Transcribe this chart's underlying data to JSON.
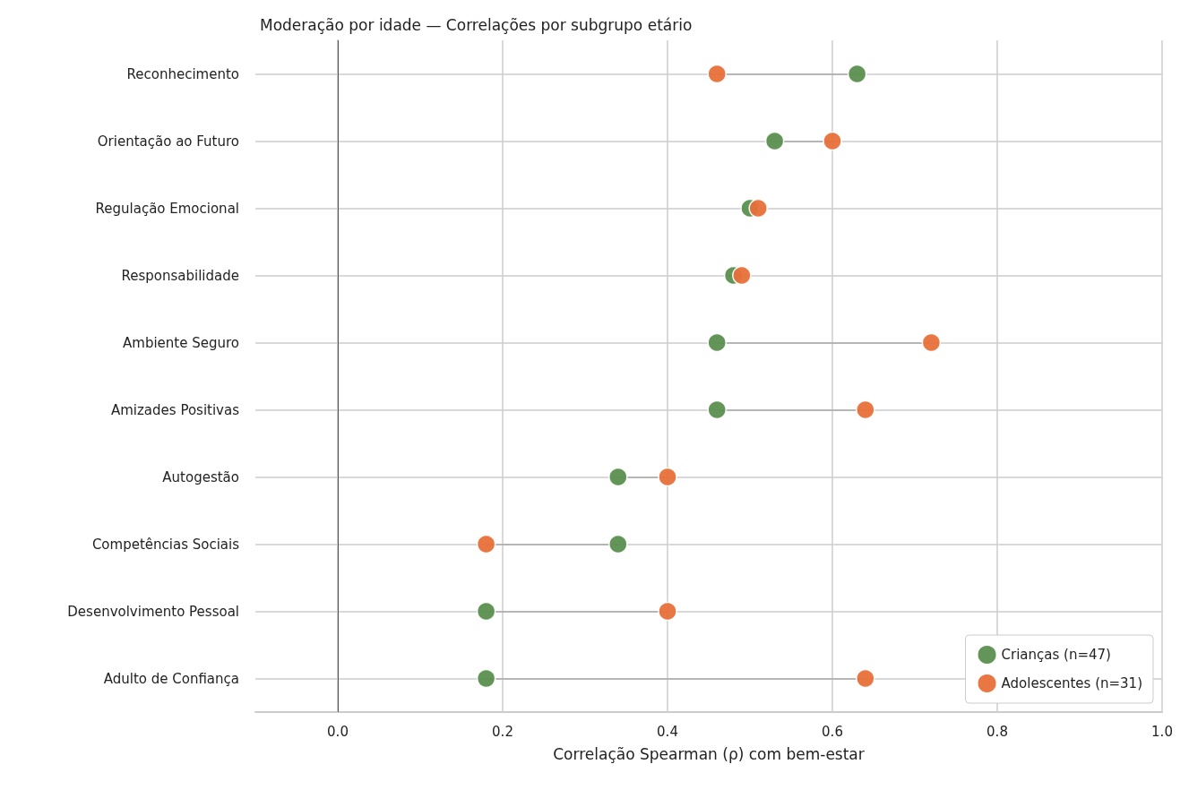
{
  "chart_data": {
    "type": "scatter",
    "title": "Moderação por idade — Correlações por subgrupo etário",
    "xlabel": "Correlação Spearman (ρ) com bem-estar",
    "orientation": "horizontal",
    "categories": [
      "Reconhecimento",
      "Orientação ao Futuro",
      "Regulação Emocional",
      "Responsabilidade",
      "Ambiente Seguro",
      "Amizades Positivas",
      "Autogestão",
      "Competências Sociais",
      "Desenvolvimento Pessoal",
      "Adulto de Confiança"
    ],
    "series": [
      {
        "name": "Crianças (n=47)",
        "color": "#5a8f4e",
        "values": [
          0.63,
          0.53,
          0.5,
          0.48,
          0.46,
          0.46,
          0.34,
          0.34,
          0.18,
          0.18
        ]
      },
      {
        "name": "Adolescentes (n=31)",
        "color": "#e8703a",
        "values": [
          0.46,
          0.6,
          0.51,
          0.49,
          0.72,
          0.64,
          0.4,
          0.18,
          0.4,
          0.64
        ]
      }
    ],
    "xlim": [
      -0.1,
      1.0
    ],
    "xticks": [
      {
        "value": 0,
        "label": "0.0"
      },
      {
        "value": 0.2,
        "label": "0.2"
      },
      {
        "value": 0.4,
        "label": "0.4"
      },
      {
        "value": 0.6,
        "label": "0.6"
      },
      {
        "value": 0.8,
        "label": "0.8"
      },
      {
        "value": 1.0,
        "label": "1.0"
      }
    ],
    "ref_lines": [
      {
        "axis": "x",
        "value": 0,
        "color": "#555555"
      }
    ],
    "grid": true,
    "legend": "bottom right",
    "marker": "circle"
  }
}
